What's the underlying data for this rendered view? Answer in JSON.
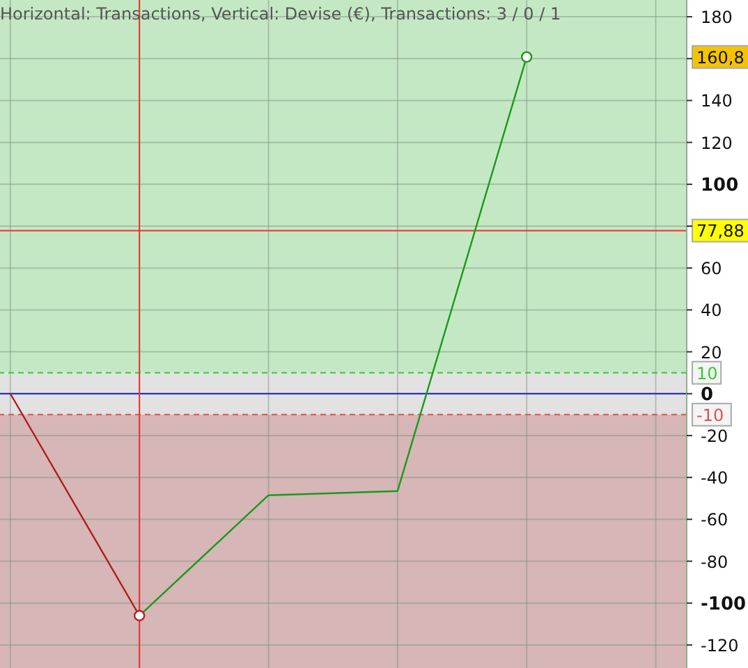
{
  "chart_data": {
    "type": "line",
    "title": "Horizontal: Transactions, Vertical: Devise (€), Transactions: 3 / 0 / 1",
    "categories": [
      null,
      null,
      null,
      null,
      null,
      null
    ],
    "series": [
      {
        "color": "#b01c1c",
        "values": [
          0,
          -106,
          null,
          null,
          null,
          null
        ]
      },
      {
        "color": "#1a9a1a",
        "values": [
          null,
          -106,
          -48.5,
          -46.5,
          160.8,
          null
        ]
      },
      {
        "type": "scatter",
        "marker": "circle",
        "color": "#c02020",
        "values": [
          null,
          -106,
          null,
          null,
          null,
          null
        ]
      },
      {
        "type": "scatter",
        "marker": "circle",
        "color": "#1a9a1a",
        "values": [
          null,
          null,
          null,
          null,
          160.8,
          null
        ]
      }
    ],
    "ylim": [
      -131,
      188
    ],
    "yticks": [
      -120,
      -100,
      -80,
      -60,
      -40,
      -20,
      0,
      20,
      40,
      60,
      {
        "value": 80,
        "label": null
      },
      100,
      120,
      140,
      {
        "value": 160,
        "label": null
      },
      180
    ],
    "tick_labels": "y",
    "grid": true,
    "marker": "none",
    "line_style": "solid",
    "bands": [
      {
        "axis": "y",
        "from": 10,
        "to": 188,
        "color": "#c4e8c4"
      },
      {
        "axis": "y",
        "from": -10,
        "to": 10,
        "color": "#e2e2e2"
      },
      {
        "axis": "y",
        "from": -131,
        "to": -10,
        "color": "#d6b6b6"
      }
    ],
    "ref_lines": [
      {
        "axis": "y",
        "value": 77.88,
        "label": "77,88",
        "color": "#f03030",
        "line_style": "solid"
      },
      {
        "axis": "y",
        "value": 10,
        "label": "10",
        "color": "#33cc33",
        "line_style": "dashed"
      },
      {
        "axis": "y",
        "value": -10,
        "label": "-10",
        "color": "#e05050",
        "line_style": "dashed"
      },
      {
        "axis": "y",
        "value": 0,
        "color": "#2020c0",
        "line_style": "solid"
      }
    ],
    "annotations": [
      "160,8"
    ]
  }
}
